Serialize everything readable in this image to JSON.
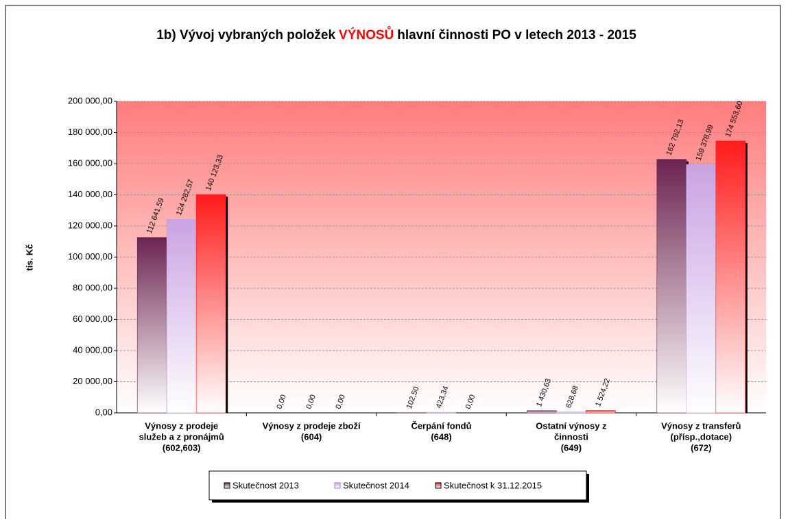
{
  "chart_data": {
    "type": "bar",
    "title": [
      "1b) Vývoj vybraných položek",
      "VÝNOSŮ",
      "hlavní činnosti PO v letech 2013 - 2015"
    ],
    "y_label": "tis. Kč",
    "categories": [
      [
        "Výnosy z prodeje",
        "služeb a z pronájmů",
        "(602,603)"
      ],
      [
        "Výnosy z prodeje zboží",
        "(604)"
      ],
      [
        "Čerpání fondů",
        "(648)"
      ],
      [
        "Ostatní výnosy z",
        "činnosti",
        "(649)"
      ],
      [
        "Výnosy z transferů",
        "(přísp.,dotace)",
        "(672)"
      ]
    ],
    "series": [
      {
        "name": "Skutečnost 2013",
        "color": "#6b2450",
        "values": [
          112641.59,
          0,
          102.5,
          1430.63,
          162792.13
        ],
        "value_labels": [
          "112 641,59",
          "0,00",
          "102,50",
          "1 430,63",
          "162 792,13"
        ]
      },
      {
        "name": "Skutečnost 2014",
        "color": "#c9a3e3",
        "values": [
          124282.57,
          0,
          423.34,
          628.68,
          159378.99
        ],
        "value_labels": [
          "124 282,57",
          "0,00",
          "423,34",
          "628,68",
          "159 378,99"
        ]
      },
      {
        "name": "Skutečnost k 31.12.2015",
        "color": "#ff1a1a",
        "values": [
          140123.33,
          0,
          0,
          1524.22,
          174553.6
        ],
        "value_labels": [
          "140 123,33",
          "0,00",
          "0,00",
          "1 524,22",
          "174 553,60"
        ]
      }
    ],
    "ylim": [
      0,
      200000
    ],
    "yticks": [
      {
        "value": 0,
        "label": "0,00"
      },
      {
        "value": 20000,
        "label": "20 000,00"
      },
      {
        "value": 40000,
        "label": "40 000,00"
      },
      {
        "value": 60000,
        "label": "60 000,00"
      },
      {
        "value": 80000,
        "label": "80 000,00"
      },
      {
        "value": 100000,
        "label": "100 000,00"
      },
      {
        "value": 120000,
        "label": "120 000,00"
      },
      {
        "value": 140000,
        "label": "140 000,00"
      },
      {
        "value": 160000,
        "label": "160 000,00"
      },
      {
        "value": 180000,
        "label": "180 000,00"
      },
      {
        "value": 200000,
        "label": "200 000,00"
      }
    ],
    "grid": true,
    "legend": "bottom"
  }
}
